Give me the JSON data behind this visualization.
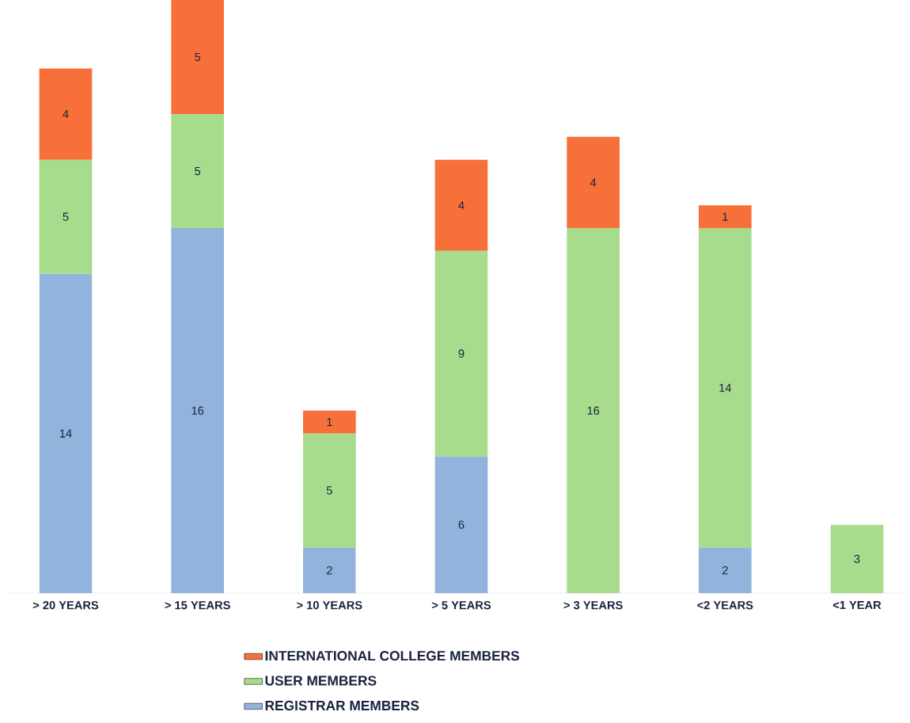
{
  "chart_data": {
    "type": "bar",
    "stacked": true,
    "data_labels": true,
    "legend": "bottom",
    "categories": [
      "> 20 YEARS",
      "> 15 YEARS",
      "> 10 YEARS",
      "> 5 YEARS",
      "> 3 YEARS",
      "<2 YEARS",
      "<1 YEAR"
    ],
    "series": [
      {
        "name": "REGISTRAR MEMBERS",
        "color": "#92b3dc",
        "values": [
          14,
          16,
          2,
          6,
          null,
          2,
          null
        ]
      },
      {
        "name": "USER MEMBERS",
        "color": "#a6dc8c",
        "values": [
          5,
          5,
          5,
          9,
          16,
          14,
          3
        ]
      },
      {
        "name": "INTERNATIONAL COLLEGE MEMBERS",
        "color": "#f7703a",
        "values": [
          4,
          5,
          1,
          4,
          4,
          1,
          null
        ]
      }
    ]
  }
}
